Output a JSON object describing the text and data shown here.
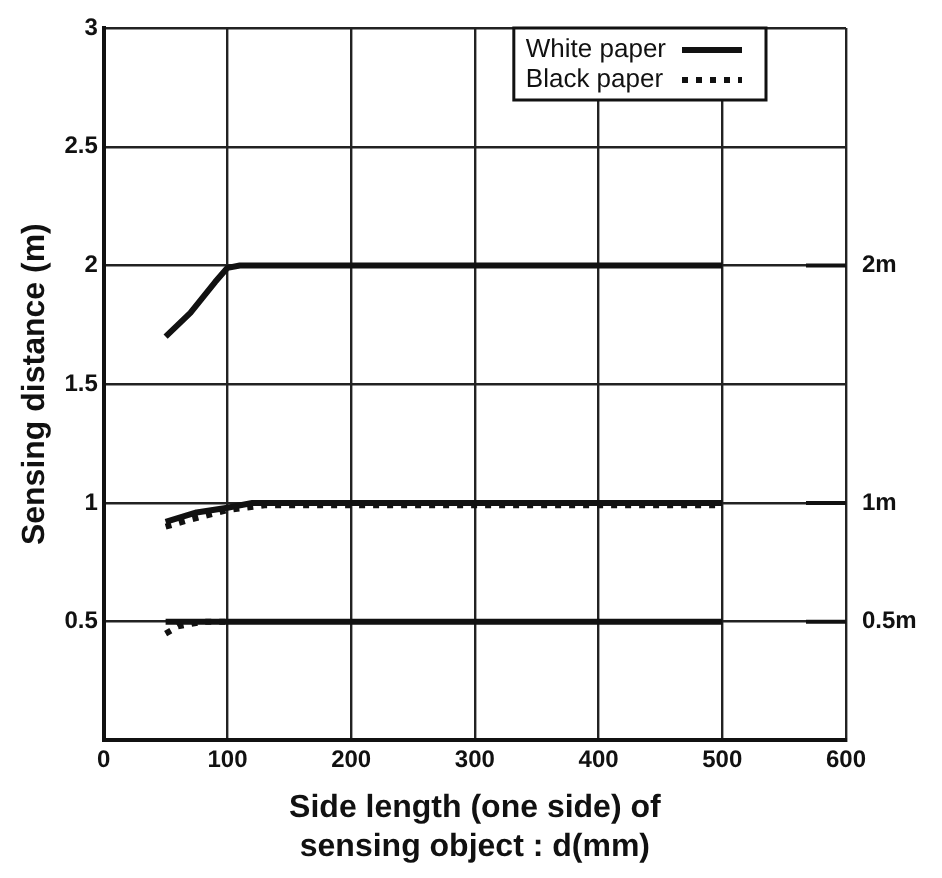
{
  "chart_data": {
    "type": "line",
    "xlabel": "Side length (one side) of\nsensing object : d(mm)",
    "ylabel": "Sensing distance (m)",
    "xlim": [
      0,
      600
    ],
    "xticks": [
      0,
      100,
      200,
      300,
      400,
      500,
      600
    ],
    "ylim": [
      0,
      3
    ],
    "yticks": [
      0.5,
      1,
      1.5,
      2,
      2.5,
      3
    ],
    "grid": true,
    "legend": "top right",
    "marker": "none",
    "series": [
      {
        "name": "White paper",
        "color": "#111111",
        "line_style": "solid",
        "x": [
          50,
          70,
          90,
          100,
          110,
          500
        ],
        "values": [
          1.7,
          1.8,
          1.93,
          1.99,
          2.0,
          2.0
        ]
      },
      {
        "color": "#111111",
        "line_style": "solid",
        "x": [
          50,
          75,
          100,
          120,
          500
        ],
        "values": [
          0.92,
          0.96,
          0.98,
          1.0,
          1.0
        ]
      },
      {
        "color": "#111111",
        "line_style": "solid",
        "x": [
          50,
          500
        ],
        "values": [
          0.5,
          0.5
        ]
      },
      {
        "name": "Black paper",
        "color": "#111111",
        "line_style": "dotted",
        "x": [
          50,
          70,
          100,
          130,
          500
        ],
        "values": [
          0.9,
          0.93,
          0.97,
          0.99,
          0.99
        ]
      },
      {
        "color": "#111111",
        "line_style": "dotted",
        "x": [
          50,
          60,
          80,
          100
        ],
        "values": [
          0.45,
          0.48,
          0.5,
          0.5
        ]
      }
    ],
    "ref_lines": [
      {
        "axis": "y",
        "value": 2,
        "label": "2m"
      },
      {
        "axis": "y",
        "value": 1,
        "label": "1m"
      },
      {
        "axis": "y",
        "value": 0.5,
        "label": "0.5m"
      }
    ]
  }
}
